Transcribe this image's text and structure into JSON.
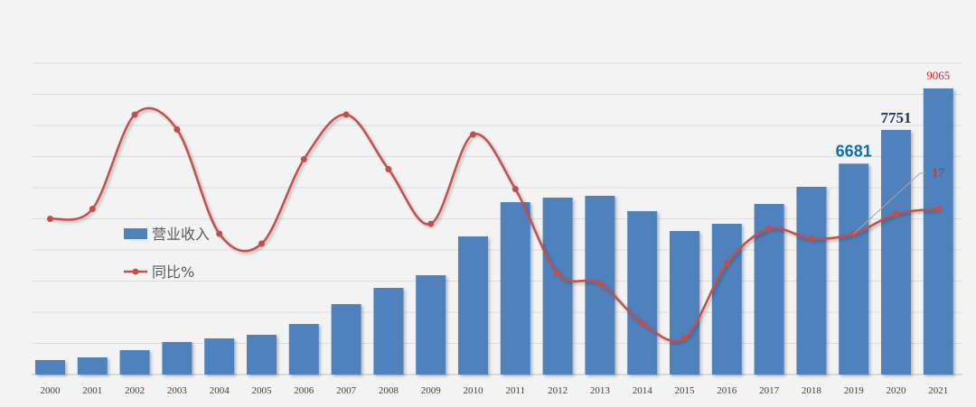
{
  "chart_data": {
    "type": "bar+line",
    "categories": [
      "2000",
      "2001",
      "2002",
      "2003",
      "2004",
      "2005",
      "2006",
      "2007",
      "2008",
      "2009",
      "2010",
      "2011",
      "2012",
      "2013",
      "2014",
      "2015",
      "2016",
      "2017",
      "2018",
      "2019",
      "2020",
      "2021"
    ],
    "series": [
      {
        "name": "营业收入",
        "type": "bar",
        "color": "#4f81bd",
        "values": [
          458,
          543,
          772,
          1030,
          1144,
          1258,
          1601,
          2230,
          2745,
          3146,
          4375,
          5462,
          5605,
          5662,
          5176,
          4547,
          4776,
          5405,
          5948,
          6681,
          7751,
          9065
        ]
      },
      {
        "name": "同比%",
        "type": "line",
        "color": "#c0504d",
        "values": [
          15,
          17,
          36,
          33,
          12,
          10,
          27,
          36,
          25,
          14,
          32,
          21,
          4,
          2,
          -6,
          -9,
          6,
          13,
          11,
          12,
          16,
          17
        ]
      }
    ],
    "data_labels": [
      {
        "series": 0,
        "category": "2019",
        "text": "6681",
        "color": "#0070c0"
      },
      {
        "series": 0,
        "category": "2020",
        "text": "7751",
        "color": "#1f3864"
      },
      {
        "series": 0,
        "category": "2021",
        "text": "9065",
        "color": "#e02020"
      },
      {
        "series": 1,
        "category": "2021",
        "text": "17",
        "color": "#e02020"
      }
    ],
    "legend": "left",
    "grid": true,
    "title": "",
    "xlabel": "",
    "ylabel": ""
  }
}
